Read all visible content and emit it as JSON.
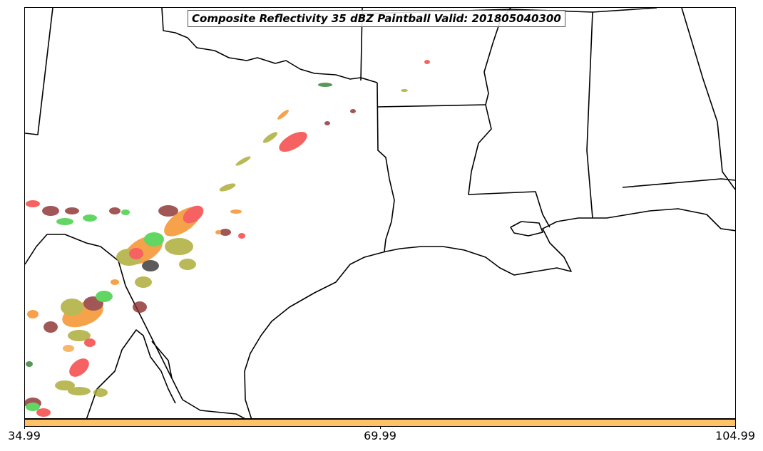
{
  "title": "Composite Reflectivity 35 dBZ Paintball Valid: 201805040300",
  "colorbar": {
    "color": "#FFC266",
    "ticks": [
      "34.99",
      "69.99",
      "104.99"
    ]
  },
  "colors": {
    "red": "#F53C3C",
    "orange": "#F58C1E",
    "yellow_olive": "#A8A82E",
    "green": "#3CCD3C",
    "dark_green": "#2E7D2E",
    "maroon": "#8B2E2E",
    "dark_gray": "#333333",
    "light_orange": "#F5A642"
  }
}
